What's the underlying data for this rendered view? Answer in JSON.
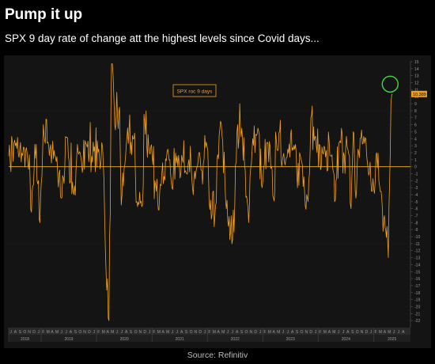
{
  "header": {
    "title": "Pump it up",
    "subtitle": "SPX 9 day rate of change att the highest levels since Covid days..."
  },
  "footer": {
    "source": "Source: Refinitiv"
  },
  "colors": {
    "line": "#f0a020",
    "zero_line": "#d4a017",
    "highlight_circle": "#3ddc3d",
    "legend_text": "#f0a020",
    "axis_text": "#9a9a9a"
  },
  "chart_data": {
    "type": "line",
    "title": "",
    "xlabel": "",
    "ylabel": "",
    "legend": {
      "entries": [
        "SPX roc 9 days"
      ],
      "placement": "top-center"
    },
    "ylim": [
      -23,
      15
    ],
    "yticks": [
      15,
      14,
      13,
      12,
      11,
      10,
      9,
      8,
      7,
      6,
      5,
      4,
      3,
      2,
      1,
      0,
      -1,
      -2,
      -3,
      -4,
      -5,
      -6,
      -7,
      -8,
      -9,
      -10,
      -11,
      -12,
      -13,
      -14,
      -15,
      -16,
      -17,
      -18,
      -19,
      -20,
      -21,
      -22
    ],
    "last_value_label": "10.389",
    "xlim": [
      "2018-06-01",
      "2025-09-01"
    ],
    "x_month_labels": [
      "J",
      "A",
      "S",
      "O",
      "N",
      "D",
      "J",
      "F",
      "M",
      "A",
      "M",
      "J",
      "J",
      "A",
      "S",
      "O",
      "N",
      "D",
      "J",
      "F",
      "M",
      "A",
      "M",
      "J",
      "J",
      "A",
      "S",
      "O",
      "N",
      "D",
      "J",
      "F",
      "M",
      "A",
      "M",
      "J",
      "J",
      "A",
      "S",
      "O",
      "N",
      "D",
      "J",
      "F",
      "M",
      "A",
      "M",
      "J",
      "J",
      "A",
      "S",
      "O",
      "N",
      "D",
      "J",
      "F",
      "M",
      "A",
      "M",
      "J",
      "J",
      "A",
      "S",
      "O",
      "N",
      "D",
      "J",
      "F",
      "M",
      "A",
      "M",
      "J",
      "J",
      "A",
      "S",
      "O",
      "N",
      "D",
      "J",
      "F",
      "M",
      "A",
      "M",
      "J",
      "J",
      "A"
    ],
    "x_year_labels": [
      {
        "label": "2018",
        "from": "2018-06-01",
        "to": "2019-01-01"
      },
      {
        "label": "2019",
        "from": "2019-01-01",
        "to": "2020-01-01"
      },
      {
        "label": "2020",
        "from": "2020-01-01",
        "to": "2021-01-01"
      },
      {
        "label": "2021",
        "from": "2021-01-01",
        "to": "2022-01-01"
      },
      {
        "label": "2022",
        "from": "2022-01-01",
        "to": "2023-01-01"
      },
      {
        "label": "2023",
        "from": "2023-01-01",
        "to": "2024-01-01"
      },
      {
        "label": "2024",
        "from": "2024-01-01",
        "to": "2025-01-01"
      },
      {
        "label": "2025",
        "from": "2025-01-01",
        "to": "2025-09-01"
      }
    ],
    "annotations": [
      {
        "type": "circle",
        "x": "2025-04-20",
        "y": 11.8
      }
    ],
    "series": [
      {
        "name": "SPX roc 9 days",
        "x": [
          "2018-06-01",
          "2018-07-15",
          "2018-09-01",
          "2018-10-01",
          "2018-10-29",
          "2018-11-20",
          "2018-12-24",
          "2019-01-15",
          "2019-02-15",
          "2019-04-01",
          "2019-05-13",
          "2019-06-20",
          "2019-08-05",
          "2019-09-15",
          "2019-11-01",
          "2019-12-15",
          "2020-01-20",
          "2020-02-10",
          "2020-02-28",
          "2020-03-23",
          "2020-04-09",
          "2020-04-30",
          "2020-06-01",
          "2020-06-12",
          "2020-07-15",
          "2020-09-03",
          "2020-09-23",
          "2020-10-30",
          "2020-11-09",
          "2020-12-15",
          "2021-01-29",
          "2021-02-25",
          "2021-04-15",
          "2021-05-12",
          "2021-06-15",
          "2021-07-20",
          "2021-09-01",
          "2021-09-30",
          "2021-11-05",
          "2021-11-30",
          "2021-12-25",
          "2022-01-27",
          "2022-02-24",
          "2022-03-29",
          "2022-05-20",
          "2022-06-16",
          "2022-07-15",
          "2022-08-16",
          "2022-09-30",
          "2022-10-27",
          "2022-11-30",
          "2022-12-28",
          "2023-01-31",
          "2023-03-13",
          "2023-03-31",
          "2023-05-15",
          "2023-06-15",
          "2023-07-31",
          "2023-08-18",
          "2023-09-01",
          "2023-10-27",
          "2023-11-14",
          "2023-12-20",
          "2024-01-31",
          "2024-03-28",
          "2024-04-19",
          "2024-05-20",
          "2024-07-15",
          "2024-08-05",
          "2024-08-20",
          "2024-09-06",
          "2024-09-20",
          "2024-11-11",
          "2024-12-18",
          "2025-01-21",
          "2025-02-19",
          "2025-03-13",
          "2025-04-08",
          "2025-04-25",
          "2025-05-05"
        ],
        "y": [
          1.5,
          3.0,
          1.6,
          1.8,
          -6.5,
          3.2,
          -8.0,
          6.0,
          3.5,
          1.6,
          -4.5,
          4.2,
          -4.0,
          2.0,
          2.8,
          2.2,
          1.5,
          2.8,
          -11.5,
          -22.0,
          16.0,
          6.0,
          8.5,
          -5.5,
          3.0,
          4.0,
          -5.0,
          -5.5,
          7.5,
          2.0,
          -3.5,
          -2.5,
          2.5,
          -3.0,
          1.5,
          1.0,
          1.0,
          -4.0,
          2.0,
          -2.5,
          3.5,
          -7.5,
          -5.5,
          6.5,
          -8.5,
          -10.5,
          5.0,
          5.5,
          -8.0,
          4.0,
          5.5,
          -3.0,
          3.5,
          -4.5,
          4.0,
          1.5,
          2.5,
          2.5,
          -3.0,
          2.0,
          -5.0,
          7.0,
          3.0,
          2.0,
          1.5,
          -5.0,
          3.5,
          2.5,
          -6.0,
          5.0,
          -4.5,
          2.5,
          4.0,
          -3.5,
          2.0,
          -3.5,
          -7.0,
          -13.0,
          9.0,
          10.389
        ]
      }
    ]
  }
}
